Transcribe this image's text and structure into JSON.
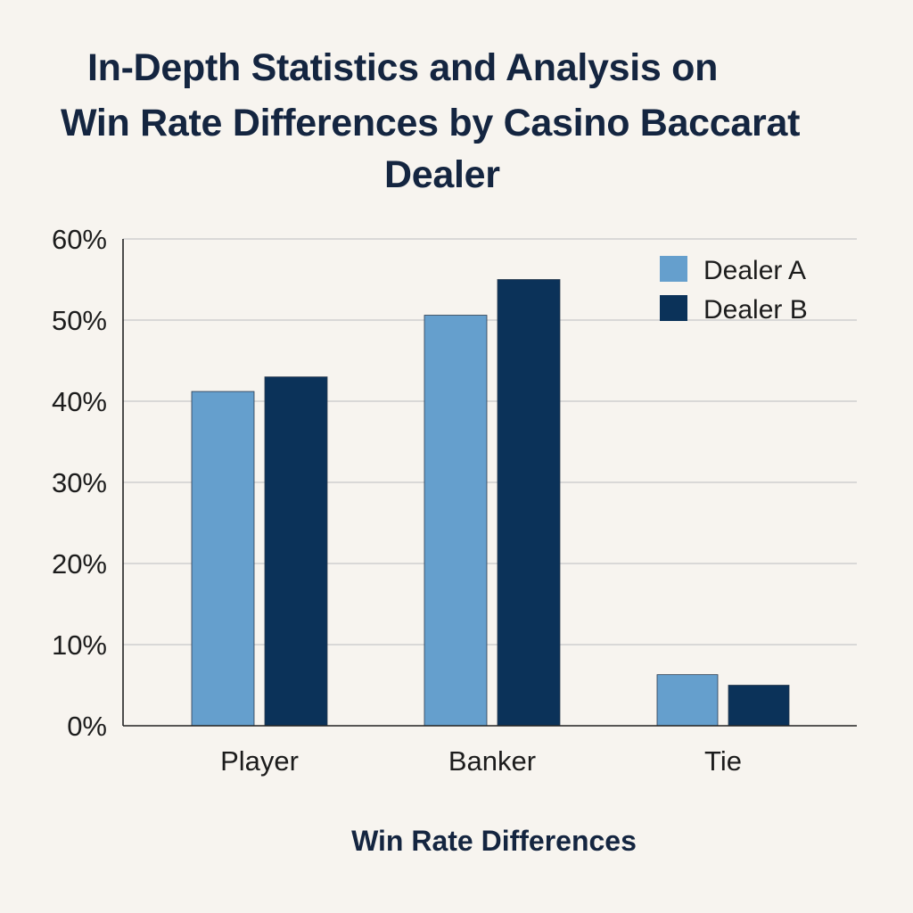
{
  "chart_data": {
    "type": "bar",
    "title_lines": [
      "In-Depth Statistics and Analysis on",
      "Win Rate Differences by Casino Baccarat",
      "Dealer"
    ],
    "xlabel": "Win Rate Differences",
    "ylabel": "",
    "categories": [
      "Player",
      "Banker",
      "Tie"
    ],
    "series": [
      {
        "name": "Dealer A",
        "values": [
          41.2,
          50.6,
          6.3
        ],
        "color": "#659fcd"
      },
      {
        "name": "Dealer B",
        "values": [
          43.0,
          55.0,
          5.0
        ],
        "color": "#0b3259"
      }
    ],
    "ylim": [
      0,
      60
    ],
    "yticks": [
      0,
      10,
      20,
      30,
      40,
      50,
      60
    ],
    "ytick_labels": [
      "0%",
      "10%",
      "20%",
      "30%",
      "40%",
      "50%",
      "60%"
    ],
    "grid": true,
    "legend_position": "top-right",
    "colors": {
      "background": "#f7f4ef",
      "gridline": "#cfcfcf",
      "axis": "#222222",
      "text": "#142540"
    }
  }
}
